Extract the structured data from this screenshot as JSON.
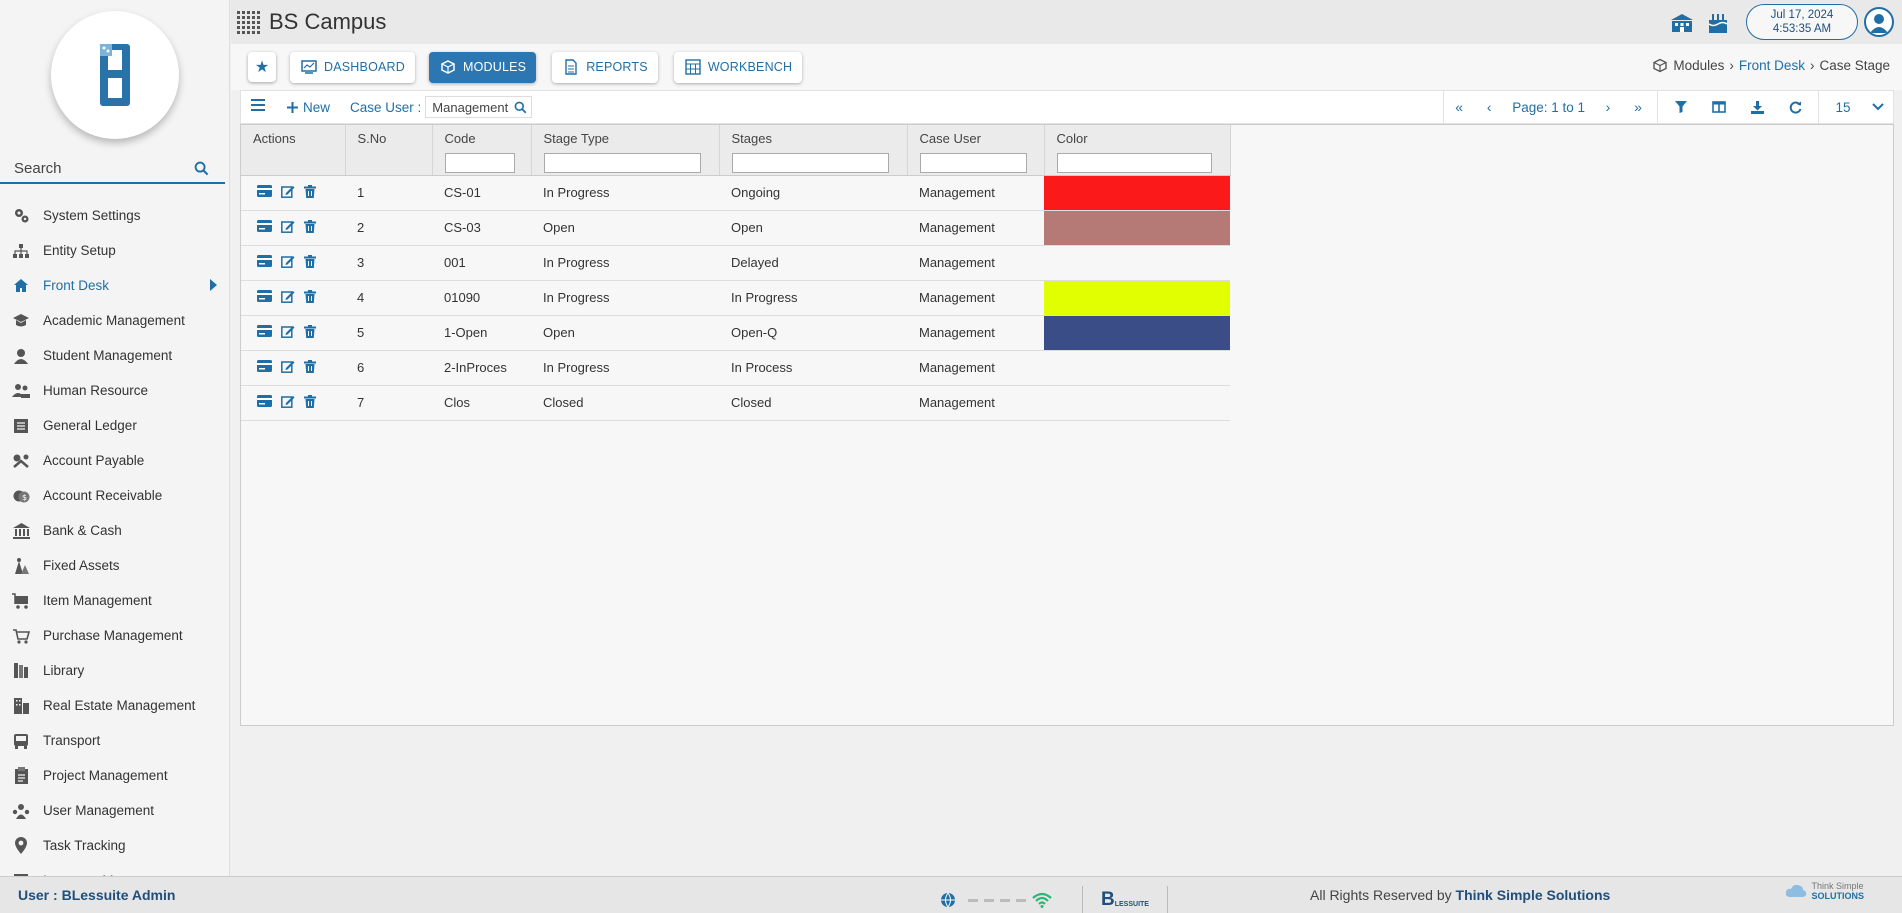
{
  "app": {
    "title": "BS Campus"
  },
  "header": {
    "date": "Jul 17, 2024",
    "time": "4:53:35 AM"
  },
  "sidebar": {
    "search_label": "Search",
    "items": [
      {
        "label": "System Settings",
        "icon": "gears-icon"
      },
      {
        "label": "Entity Setup",
        "icon": "hierarchy-icon"
      },
      {
        "label": "Front Desk",
        "icon": "frontdesk-icon",
        "active": true
      },
      {
        "label": "Academic Management",
        "icon": "graduation-cap-icon"
      },
      {
        "label": "Student Management",
        "icon": "student-icon"
      },
      {
        "label": "Human Resource",
        "icon": "hr-icon"
      },
      {
        "label": "General Ledger",
        "icon": "ledger-icon"
      },
      {
        "label": "Account Payable",
        "icon": "payable-icon"
      },
      {
        "label": "Account Receivable",
        "icon": "receivable-icon"
      },
      {
        "label": "Bank & Cash",
        "icon": "bank-icon"
      },
      {
        "label": "Fixed Assets",
        "icon": "assets-icon"
      },
      {
        "label": "Item Management",
        "icon": "cart-icon"
      },
      {
        "label": "Purchase Management",
        "icon": "purchase-icon"
      },
      {
        "label": "Library",
        "icon": "library-icon"
      },
      {
        "label": "Real Estate Management",
        "icon": "building-icon"
      },
      {
        "label": "Transport",
        "icon": "bus-icon"
      },
      {
        "label": "Project Management",
        "icon": "project-icon"
      },
      {
        "label": "User Management",
        "icon": "users-icon"
      },
      {
        "label": "Task Tracking",
        "icon": "pin-icon"
      },
      {
        "label": "Inventory Management",
        "icon": "inventory-icon"
      }
    ]
  },
  "nav": {
    "dashboard": "DASHBOARD",
    "modules": "MODULES",
    "reports": "REPORTS",
    "workbench": "WORKBENCH"
  },
  "breadcrumb": {
    "modules": "Modules",
    "front_desk": "Front Desk",
    "current": "Case Stage"
  },
  "toolbar": {
    "new_label": "New",
    "case_user_label": "Case User :",
    "case_user_value": "Management",
    "page_label": "Page: 1 to 1",
    "page_size": "15"
  },
  "table": {
    "columns": [
      "Actions",
      "S.No",
      "Code",
      "Stage Type",
      "Stages",
      "Case User",
      "Color"
    ],
    "rows": [
      {
        "sno": "1",
        "code": "CS-01",
        "stage_type": "In Progress",
        "stage": "Ongoing",
        "case_user": "Management",
        "color": "#fb1919"
      },
      {
        "sno": "2",
        "code": "CS-03",
        "stage_type": "Open",
        "stage": "Open",
        "case_user": "Management",
        "color": "#b57a76"
      },
      {
        "sno": "3",
        "code": "001",
        "stage_type": "In Progress",
        "stage": "Delayed",
        "case_user": "Management",
        "color": ""
      },
      {
        "sno": "4",
        "code": "01090",
        "stage_type": "In Progress",
        "stage": "In Progress",
        "case_user": "Management",
        "color": "#e2ff00"
      },
      {
        "sno": "5",
        "code": "1-Open",
        "stage_type": "Open",
        "stage": "Open-Q",
        "case_user": "Management",
        "color": "#3b4d86"
      },
      {
        "sno": "6",
        "code": "2-InProces",
        "stage_type": "In Progress",
        "stage": "In Process",
        "case_user": "Management",
        "color": ""
      },
      {
        "sno": "7",
        "code": "Clos",
        "stage_type": "Closed",
        "stage": "Closed",
        "case_user": "Management",
        "color": ""
      }
    ]
  },
  "footer": {
    "user_label": "User :",
    "user_name": "BLessuite Admin",
    "rights_prefix": "All Rights Reserved by",
    "company": "Think Simple Solutions",
    "logo_text_top": "Think Simple",
    "logo_text_bottom": "SOLUTIONS",
    "brand_small": "LESSUITE"
  },
  "colors": {
    "accent": "#1f6fa6",
    "accent_active": "#2c76b1"
  }
}
